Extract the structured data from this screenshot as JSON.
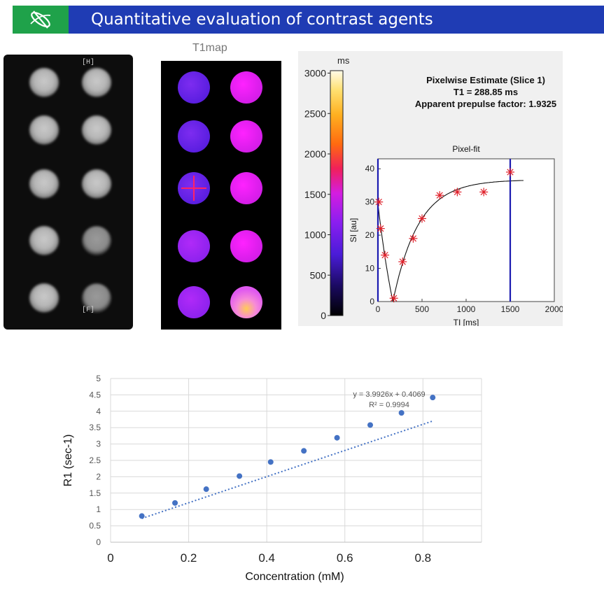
{
  "header": {
    "title": "Quantitative evaluation of contrast agents"
  },
  "mri_panel": {
    "label_h": "[H]",
    "label_f": "[F]"
  },
  "t1map": {
    "title": "T1map",
    "colorbar_unit": "ms",
    "colorbar_ticks": [
      "3000",
      "2500",
      "2000",
      "1500",
      "1000",
      "500",
      "0"
    ]
  },
  "pixelfit": {
    "estimate_title": "Pixelwise Estimate (Slice 1)",
    "t1_line": "T1 = 288.85 ms",
    "prepulse_line": "Apparent prepulse factor: 1.9325",
    "plot_title": "Pixel-fit",
    "ylabel": "SI [au]",
    "xlabel": "TI [ms]",
    "x_ticks": [
      "0",
      "500",
      "1000",
      "1500",
      "2000"
    ],
    "y_ticks": [
      "0",
      "10",
      "20",
      "30",
      "40"
    ],
    "xlim": [
      0,
      2000
    ],
    "ylim": [
      0,
      43
    ],
    "points": [
      [
        10,
        30
      ],
      [
        30,
        22
      ],
      [
        80,
        14
      ],
      [
        180,
        1
      ],
      [
        280,
        12
      ],
      [
        400,
        19
      ],
      [
        500,
        25
      ],
      [
        700,
        32
      ],
      [
        900,
        33
      ],
      [
        1200,
        33
      ],
      [
        1500,
        39
      ]
    ],
    "markers_x": [
      0,
      1500
    ]
  },
  "chart_data": {
    "type": "scatter",
    "title": "",
    "xlabel": "Concentration (mM)",
    "ylabel": "R1 (sec-1)",
    "xlim": [
      0,
      0.95
    ],
    "ylim": [
      0,
      5
    ],
    "x_ticks": [
      "0",
      "0.2",
      "0.4",
      "0.6",
      "0.8"
    ],
    "y_ticks": [
      "0",
      "0.5",
      "1",
      "1.5",
      "2",
      "2.5",
      "3",
      "3.5",
      "4",
      "4.5",
      "5"
    ],
    "grid": true,
    "series": [
      {
        "values": [
          [
            0.08,
            0.8
          ],
          [
            0.165,
            1.2
          ],
          [
            0.245,
            1.62
          ],
          [
            0.33,
            2.02
          ],
          [
            0.41,
            2.45
          ],
          [
            0.495,
            2.79
          ],
          [
            0.58,
            3.19
          ],
          [
            0.665,
            3.58
          ],
          [
            0.745,
            3.95
          ],
          [
            0.825,
            4.42
          ]
        ]
      }
    ],
    "trendline": {
      "slope": 3.9926,
      "intercept": 0.4069,
      "equation": "y = 3.9926x + 0.4069",
      "r2": "R² = 0.9994"
    }
  },
  "colors": {
    "header_bg": "#1f3cb4",
    "logo_bg": "#1fa24a",
    "fit_marker": "#e0202a",
    "point": "#4472c4"
  }
}
